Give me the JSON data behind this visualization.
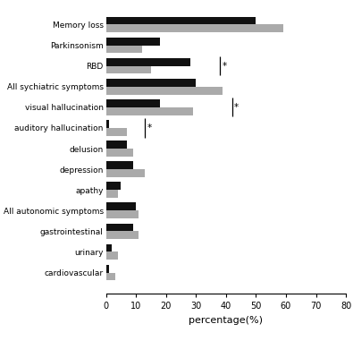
{
  "categories": [
    "Memory loss",
    "Parkinsonism",
    "RBD",
    "All sychiatric symptoms",
    "visual hallucination",
    "auditory hallucination",
    "delusion",
    "depression",
    "apathy",
    "All autonomic symptoms",
    "gastrointestinal",
    "urinary",
    "cardiovascular"
  ],
  "male_values": [
    50,
    18,
    28,
    30,
    18,
    1,
    7,
    9,
    5,
    10,
    9,
    2,
    1
  ],
  "female_values": [
    59,
    12,
    15,
    39,
    29,
    7,
    9,
    13,
    4,
    11,
    11,
    4,
    3
  ],
  "male_color": "#111111",
  "female_color": "#aaaaaa",
  "xlabel": "percentage(%)",
  "xlim": [
    0,
    80
  ],
  "xticks": [
    0,
    10,
    20,
    30,
    40,
    50,
    60,
    70,
    80
  ],
  "sig_markers": [
    {
      "cat_idx": 2,
      "x": 38
    },
    {
      "cat_idx": 4,
      "x": 42
    },
    {
      "cat_idx": 5,
      "x": 13
    }
  ],
  "bar_height": 0.38,
  "bar_gap": 0.0,
  "background_color": "#ffffff"
}
